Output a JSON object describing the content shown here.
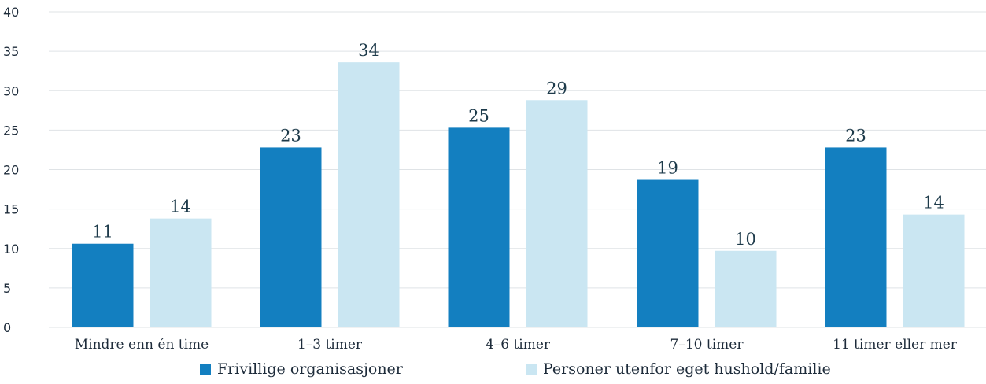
{
  "chart_data": {
    "type": "bar",
    "categories": [
      "Mindre enn én time",
      "1–3 timer",
      "4–6 timer",
      "7–10 timer",
      "11 timer eller mer"
    ],
    "series": [
      {
        "name": "Frivillige organisasjoner",
        "color": "#137fc0",
        "values": [
          11,
          23,
          25,
          19,
          23
        ],
        "heights": [
          10.6,
          22.8,
          25.3,
          18.7,
          22.8
        ]
      },
      {
        "name": "Personer utenfor eget hushold/familie",
        "color": "#cae6f2",
        "values": [
          14,
          34,
          29,
          10,
          14
        ],
        "heights": [
          13.8,
          33.6,
          28.8,
          9.7,
          14.3
        ]
      }
    ],
    "ylim": [
      0,
      40
    ],
    "yticks": [
      0,
      5,
      10,
      15,
      20,
      25,
      30,
      35,
      40
    ],
    "grid": true,
    "legend": "bottom",
    "title": "",
    "xlabel": "",
    "ylabel": ""
  }
}
